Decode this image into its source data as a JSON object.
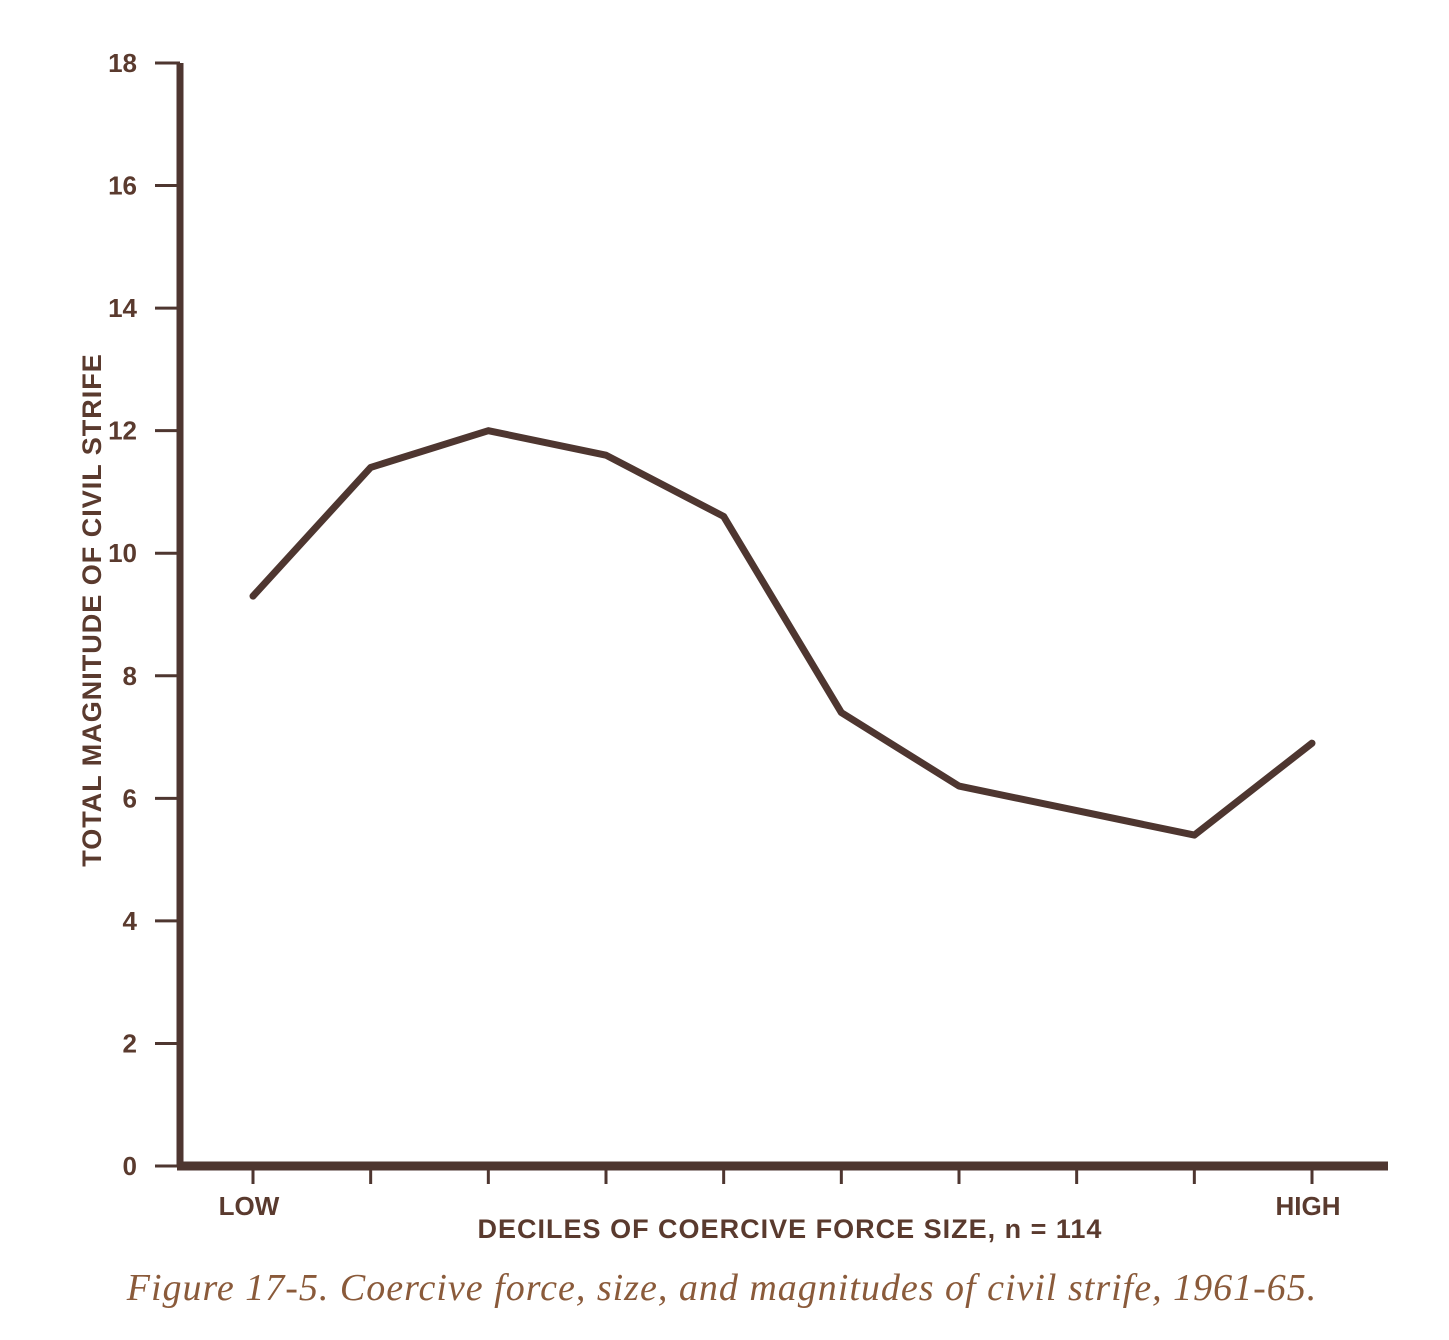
{
  "chart_data": {
    "type": "line",
    "x": [
      1,
      2,
      3,
      4,
      5,
      6,
      7,
      8,
      9,
      10
    ],
    "x_tick_labels": [
      {
        "x": 1,
        "label": "LOW"
      },
      {
        "x": 10,
        "label": "HIGH"
      }
    ],
    "series": [
      {
        "values": [
          9.3,
          11.4,
          12.0,
          11.6,
          10.6,
          7.4,
          6.2,
          5.8,
          5.4,
          6.9
        ]
      }
    ],
    "xlabel": "DECILES OF COERCIVE FORCE SIZE, n = 114",
    "ylabel": "TOTAL MAGNITUDE OF CIVIL STRIFE",
    "ylim": [
      0,
      18
    ],
    "yticks": [
      0,
      2,
      4,
      6,
      8,
      10,
      12,
      14,
      16,
      18
    ],
    "grid": false,
    "colors": {
      "line": "#4e3630",
      "axis": "#4e3630",
      "label": "#5a3a2e",
      "caption": "#8a5a3a"
    }
  },
  "caption": "Figure 17-5. Coercive force, size, and magnitudes of civil strife, 1961-65."
}
